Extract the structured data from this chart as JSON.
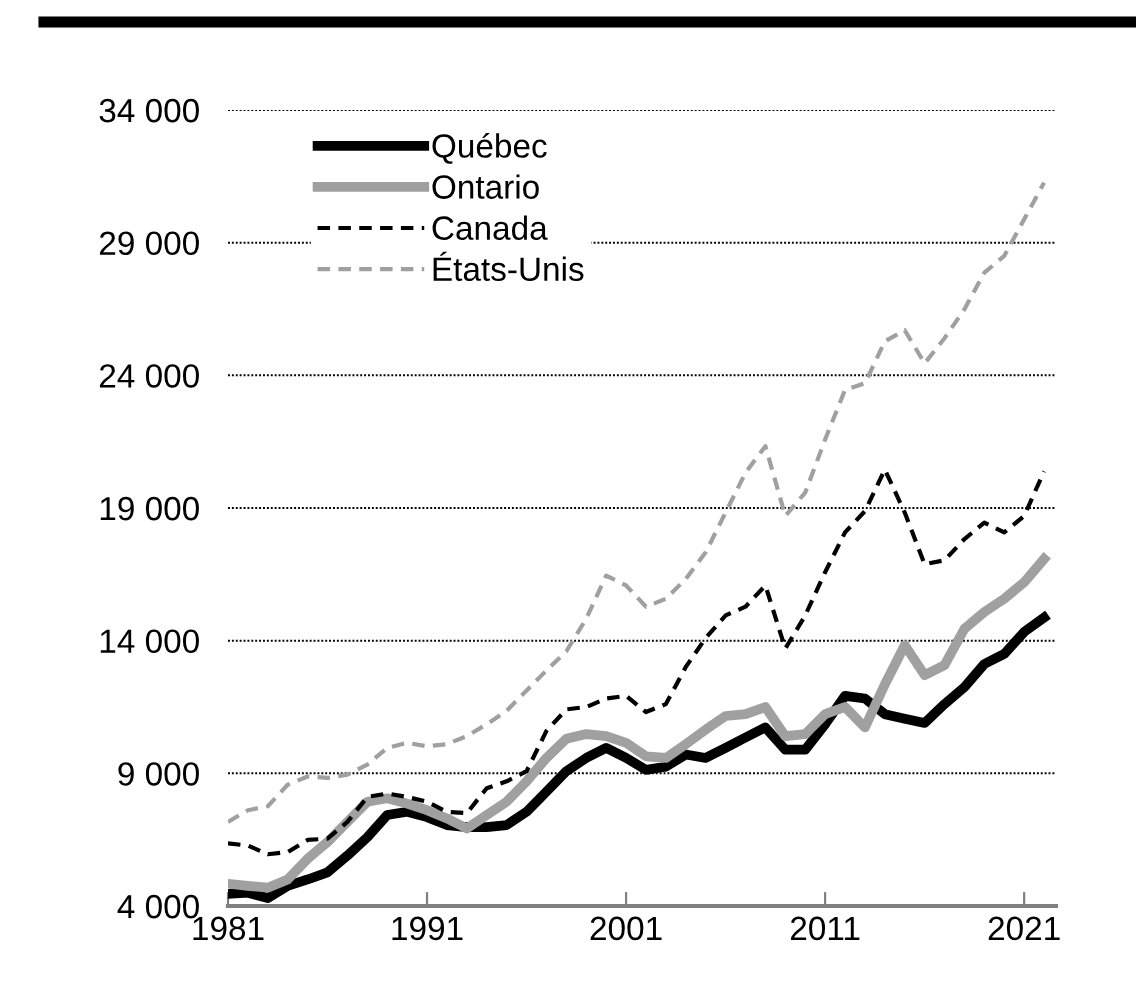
{
  "chart_data": {
    "type": "line",
    "x": [
      1981,
      1982,
      1983,
      1984,
      1985,
      1986,
      1987,
      1988,
      1989,
      1990,
      1991,
      1992,
      1993,
      1994,
      1995,
      1996,
      1997,
      1998,
      1999,
      2000,
      2001,
      2002,
      2003,
      2004,
      2005,
      2006,
      2007,
      2008,
      2009,
      2010,
      2011,
      2012,
      2013,
      2014,
      2015,
      2016,
      2017,
      2018,
      2019,
      2020,
      2021,
      2022
    ],
    "series": [
      {
        "name": "Québec",
        "color": "#000000",
        "line_style": "solid",
        "values": [
          4460,
          4500,
          4300,
          4760,
          5000,
          5270,
          5900,
          6590,
          7430,
          7550,
          7350,
          7050,
          6970,
          6970,
          7050,
          7550,
          8310,
          9080,
          9580,
          9960,
          9580,
          9130,
          9250,
          9710,
          9580,
          9960,
          10350,
          10730,
          9890,
          9890,
          10850,
          11920,
          11820,
          11230,
          11060,
          10900,
          11610,
          12250,
          13120,
          13500,
          14330,
          14870
        ]
      },
      {
        "name": "Ontario",
        "color": "#a0a0a0",
        "line_style": "solid",
        "values": [
          4840,
          4760,
          4690,
          5000,
          5780,
          6410,
          7170,
          7930,
          8060,
          7860,
          7610,
          7300,
          6920,
          7430,
          7930,
          8700,
          9580,
          10300,
          10480,
          10400,
          10150,
          9640,
          9580,
          10100,
          10650,
          11160,
          11230,
          11500,
          10400,
          10480,
          11230,
          11500,
          10730,
          12350,
          13830,
          12700,
          13080,
          14450,
          15080,
          15580,
          16200,
          17080
        ]
      },
      {
        "name": "Canada",
        "color": "#000000",
        "line_style": "dashed",
        "values": [
          6360,
          6280,
          5950,
          6030,
          6490,
          6540,
          7170,
          8110,
          8240,
          8110,
          7930,
          7550,
          7500,
          8440,
          8700,
          9080,
          10600,
          11410,
          11500,
          11820,
          11920,
          11310,
          11610,
          13010,
          14100,
          14950,
          15280,
          16080,
          13700,
          14950,
          16580,
          18080,
          18880,
          20450,
          18830,
          16880,
          17030,
          17830,
          18450,
          18080,
          18700,
          20380
        ]
      },
      {
        "name": "États-Unis",
        "color": "#a0a0a0",
        "line_style": "dashed",
        "values": [
          7170,
          7610,
          7760,
          8570,
          8880,
          8830,
          8950,
          9330,
          9960,
          10150,
          10020,
          10100,
          10400,
          10850,
          11360,
          12120,
          12880,
          13600,
          14830,
          16450,
          16080,
          15280,
          15580,
          16330,
          17330,
          18830,
          20330,
          21330,
          18700,
          19580,
          21580,
          23450,
          23700,
          25280,
          25700,
          24450,
          25400,
          26490,
          27870,
          28500,
          29880,
          31260
        ]
      }
    ],
    "xlim": [
      1981,
      2022.6
    ],
    "xticks": [
      1981,
      1991,
      2001,
      2011,
      2021
    ],
    "ylim": [
      4000,
      34000
    ],
    "yticks": [
      {
        "value": 4000,
        "label": "4 000"
      },
      {
        "value": 9000,
        "label": "9 000"
      },
      {
        "value": 14000,
        "label": "14 000"
      },
      {
        "value": 19000,
        "label": "19 000"
      },
      {
        "value": 24000,
        "label": "24 000"
      },
      {
        "value": 29000,
        "label": "29 000"
      },
      {
        "value": 34000,
        "label": "34 000"
      }
    ],
    "grid": "y",
    "legend": "top left",
    "marker": "none"
  }
}
